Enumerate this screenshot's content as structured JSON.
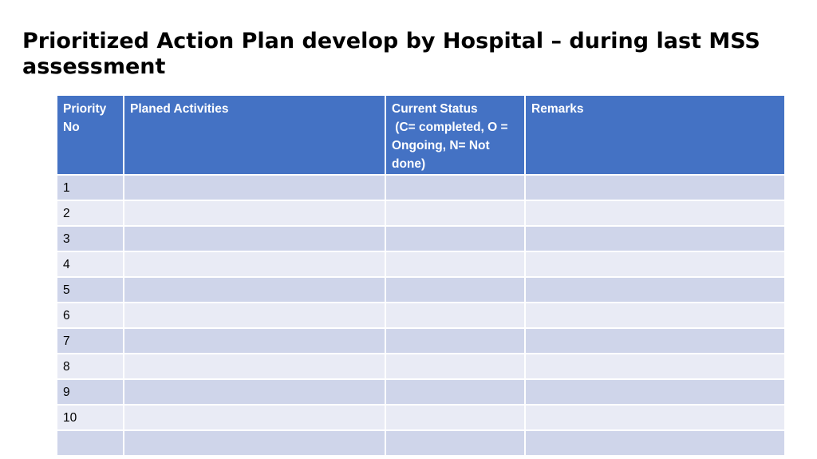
{
  "slide": {
    "title": "Prioritized  Action Plan develop by Hospital – during last MSS assessment"
  },
  "table": {
    "headers": {
      "priority_no": [
        "Priority",
        "No"
      ],
      "activities": "Planed Activities",
      "status": [
        "Current Status",
        " (C= completed, O =",
        "Ongoing, N= Not",
        "done)"
      ],
      "remarks": "Remarks"
    },
    "rows": [
      {
        "no": "1",
        "activity": "",
        "status": "",
        "remarks": ""
      },
      {
        "no": "2",
        "activity": "",
        "status": "",
        "remarks": ""
      },
      {
        "no": "3",
        "activity": "",
        "status": "",
        "remarks": ""
      },
      {
        "no": "4",
        "activity": "",
        "status": "",
        "remarks": ""
      },
      {
        "no": "5",
        "activity": "",
        "status": "",
        "remarks": ""
      },
      {
        "no": "6",
        "activity": "",
        "status": "",
        "remarks": ""
      },
      {
        "no": "7",
        "activity": "",
        "status": "",
        "remarks": ""
      },
      {
        "no": "8",
        "activity": "",
        "status": "",
        "remarks": ""
      },
      {
        "no": "9",
        "activity": "",
        "status": "",
        "remarks": ""
      },
      {
        "no": "10",
        "activity": "",
        "status": "",
        "remarks": ""
      },
      {
        "no": "",
        "activity": "",
        "status": "",
        "remarks": ""
      }
    ]
  },
  "colors": {
    "header_bg": "#4472c4",
    "row_band_dark": "#cfd5ea",
    "row_band_light": "#e9ebf5",
    "header_text": "#ffffff"
  }
}
